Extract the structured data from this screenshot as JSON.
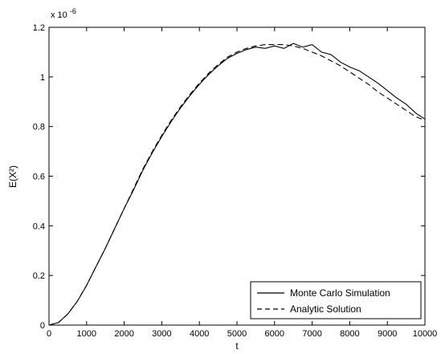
{
  "chart_data": {
    "type": "line",
    "title": "",
    "xlabel": "t",
    "ylabel": "E(X²)",
    "xlim": [
      0,
      10000
    ],
    "ylim": [
      0,
      1.2
    ],
    "y_exponent_label": "x 10",
    "y_exponent_value": "-6",
    "xticks": [
      0,
      1000,
      2000,
      3000,
      4000,
      5000,
      6000,
      7000,
      8000,
      9000,
      10000
    ],
    "xtick_labels": [
      "0",
      "1000",
      "2000",
      "3000",
      "4000",
      "5000",
      "6000",
      "7000",
      "8000",
      "9000",
      "10000"
    ],
    "yticks": [
      0,
      0.2,
      0.4,
      0.6,
      0.8,
      1.0,
      1.2
    ],
    "ytick_labels": [
      "0",
      "0.2",
      "0.4",
      "0.6",
      "0.8",
      "1",
      "1.2"
    ],
    "grid": false,
    "legend_position": "bottom-right",
    "series": [
      {
        "name": "Monte Carlo Simulation",
        "style": "solid",
        "color": "#000000",
        "x": [
          0,
          250,
          500,
          750,
          1000,
          1250,
          1500,
          1750,
          2000,
          2250,
          2500,
          2750,
          3000,
          3250,
          3500,
          3750,
          4000,
          4250,
          4500,
          4750,
          5000,
          5250,
          5500,
          5750,
          6000,
          6250,
          6500,
          6750,
          7000,
          7250,
          7500,
          7750,
          8000,
          8250,
          8500,
          8750,
          9000,
          9250,
          9500,
          9750,
          10000
        ],
        "values": [
          0.0,
          0.01,
          0.045,
          0.095,
          0.16,
          0.235,
          0.31,
          0.39,
          0.47,
          0.545,
          0.625,
          0.695,
          0.76,
          0.82,
          0.875,
          0.925,
          0.97,
          1.01,
          1.045,
          1.075,
          1.095,
          1.11,
          1.12,
          1.115,
          1.125,
          1.115,
          1.135,
          1.12,
          1.13,
          1.1,
          1.09,
          1.06,
          1.04,
          1.025,
          1.0,
          0.975,
          0.945,
          0.915,
          0.89,
          0.855,
          0.83
        ]
      },
      {
        "name": "Analytic Solution",
        "style": "dashed",
        "color": "#000000",
        "x": [
          0,
          250,
          500,
          750,
          1000,
          1250,
          1500,
          1750,
          2000,
          2250,
          2500,
          2750,
          3000,
          3250,
          3500,
          3750,
          4000,
          4250,
          4500,
          4750,
          5000,
          5250,
          5500,
          5750,
          6000,
          6250,
          6500,
          6750,
          7000,
          7250,
          7500,
          7750,
          8000,
          8250,
          8500,
          8750,
          9000,
          9250,
          9500,
          9750,
          10000
        ],
        "values": [
          0.0,
          0.01,
          0.045,
          0.095,
          0.16,
          0.235,
          0.31,
          0.39,
          0.47,
          0.55,
          0.63,
          0.7,
          0.765,
          0.825,
          0.88,
          0.93,
          0.975,
          1.015,
          1.05,
          1.08,
          1.1,
          1.115,
          1.125,
          1.13,
          1.13,
          1.13,
          1.125,
          1.115,
          1.1,
          1.085,
          1.065,
          1.045,
          1.02,
          0.995,
          0.97,
          0.94,
          0.915,
          0.89,
          0.865,
          0.84,
          0.825
        ]
      }
    ]
  }
}
